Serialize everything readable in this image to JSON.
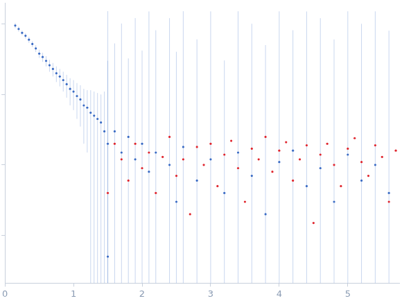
{
  "chart_data": {
    "type": "scatter",
    "log": "y",
    "grid": false,
    "tick_labels": "x",
    "xlim": [
      0,
      5.75
    ],
    "xticks": [
      0,
      1,
      2,
      3,
      4,
      5
    ],
    "ylim": [
      0.00021,
      2
    ],
    "yticks": [
      0.001,
      0.01,
      0.1,
      1
    ],
    "series": [
      {
        "color": "#3a6bc4",
        "marker": "circle",
        "x": [
          0.15,
          0.2,
          0.25,
          0.3,
          0.35,
          0.4,
          0.45,
          0.5,
          0.55,
          0.6,
          0.65,
          0.7,
          0.75,
          0.8,
          0.85,
          0.9,
          0.95,
          1.0,
          1.05,
          1.1,
          1.15,
          1.2,
          1.25,
          1.3,
          1.35,
          1.4,
          1.45,
          1.5,
          1.5,
          1.6,
          1.7,
          1.8,
          1.9,
          2.0,
          2.1,
          2.2,
          2.4,
          2.5,
          2.6,
          2.8,
          3.0,
          3.2,
          3.4,
          3.6,
          3.8,
          4.0,
          4.2,
          4.4,
          4.6,
          4.8,
          5.0,
          5.2,
          5.4,
          5.6
        ],
        "values": [
          0.95,
          0.85,
          0.75,
          0.68,
          0.6,
          0.52,
          0.45,
          0.38,
          0.34,
          0.3,
          0.26,
          0.23,
          0.2,
          0.18,
          0.16,
          0.14,
          0.12,
          0.11,
          0.095,
          0.085,
          0.07,
          0.065,
          0.055,
          0.05,
          0.045,
          0.04,
          0.03,
          0.02,
          0.0005,
          0.03,
          0.015,
          0.025,
          0.012,
          0.02,
          0.008,
          0.015,
          0.01,
          0.003,
          0.018,
          0.006,
          0.012,
          0.004,
          0.015,
          0.007,
          0.002,
          0.011,
          0.016,
          0.005,
          0.009,
          0.003,
          0.014,
          0.006,
          0.01,
          0.004
        ],
        "errors": [
          0.08,
          0.07,
          0.06,
          0.06,
          0.06,
          0.05,
          0.05,
          0.05,
          0.05,
          0.05,
          0.05,
          0.05,
          0.05,
          0.05,
          0.05,
          0.05,
          0.05,
          0.05,
          0.05,
          0.05,
          0.05,
          0.05,
          0.06,
          0.06,
          0.06,
          0.06,
          0.08,
          1.5,
          0.3,
          0.5,
          1,
          0.3,
          1.2,
          0.4,
          1.5,
          0.8,
          1.2,
          0.4,
          1.5,
          0.6,
          1.5,
          0.3,
          1.5,
          1,
          0.5,
          1.5,
          0.8,
          1.5,
          1.2,
          0.6,
          1.5,
          1,
          1.5,
          0.8
        ]
      },
      {
        "color": "#e0262e",
        "marker": "circle",
        "x": [
          1.5,
          1.6,
          1.7,
          1.8,
          1.9,
          2.0,
          2.1,
          2.2,
          2.3,
          2.4,
          2.5,
          2.6,
          2.7,
          2.8,
          2.9,
          3.0,
          3.1,
          3.2,
          3.3,
          3.4,
          3.5,
          3.6,
          3.7,
          3.8,
          3.9,
          4.0,
          4.1,
          4.2,
          4.3,
          4.4,
          4.5,
          4.6,
          4.7,
          4.8,
          4.9,
          5.0,
          5.1,
          5.2,
          5.3,
          5.4,
          5.5,
          5.6,
          5.7
        ],
        "values": [
          0.004,
          0.02,
          0.012,
          0.006,
          0.02,
          0.009,
          0.015,
          0.004,
          0.013,
          0.025,
          0.007,
          0.012,
          0.002,
          0.018,
          0.01,
          0.02,
          0.005,
          0.014,
          0.022,
          0.009,
          0.003,
          0.017,
          0.012,
          0.025,
          0.008,
          0.016,
          0.021,
          0.006,
          0.012,
          0.019,
          0.0015,
          0.014,
          0.02,
          0.01,
          0.005,
          0.017,
          0.024,
          0.011,
          0.007,
          0.019,
          0.013,
          0.003,
          0.016
        ]
      }
    ]
  }
}
